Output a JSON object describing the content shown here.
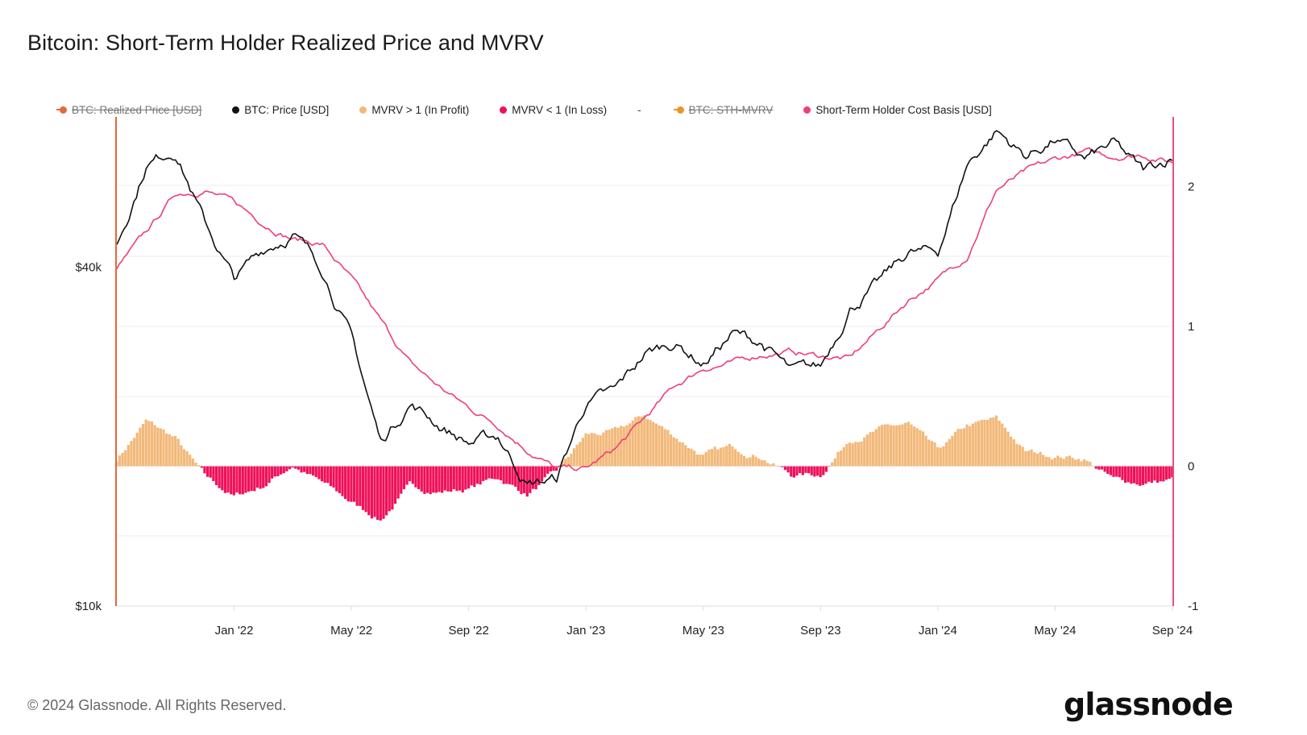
{
  "title": "Bitcoin: Short-Term Holder Realized Price and MVRV",
  "footer": "© 2024 Glassnode. All Rights Reserved.",
  "brand": "glassnode",
  "colors": {
    "price": "#111111",
    "sth_cost_basis": "#e8507c",
    "mvrv_profit": "#f2b97a",
    "mvrv_loss": "#f0105a",
    "realized_price": "#e0693c",
    "sth_mvrv": "#e8962a",
    "grid": "#eeeeee"
  },
  "legend": [
    {
      "label": "BTC: Realized Price [USD]",
      "color": "#e0693c",
      "disabled": true
    },
    {
      "label": "BTC: Price [USD]",
      "color": "#111111",
      "disabled": false
    },
    {
      "label": "MVRV > 1 (In Profit)",
      "color": "#f2b97a",
      "disabled": false
    },
    {
      "label": "MVRV < 1 (In Loss)",
      "color": "#f0105a",
      "disabled": false
    },
    {
      "label": "-",
      "color": null,
      "disabled": false,
      "separator": true
    },
    {
      "label": "BTC: STH-MVRV",
      "color": "#e8962a",
      "disabled": true
    },
    {
      "label": "Short-Term Holder Cost Basis [USD]",
      "color": "#ef3f74",
      "disabled": false
    }
  ],
  "chart_data": {
    "type": "line",
    "title": "Bitcoin: Short-Term Holder Realized Price and MVRV",
    "x_ticks": [
      "Jan '22",
      "May '22",
      "Sep '22",
      "Jan '23",
      "May '23",
      "Sep '23",
      "Jan '24",
      "May '24",
      "Sep '24"
    ],
    "x_range": [
      "Sep 2021",
      "Sep 2024"
    ],
    "y_left": {
      "scale": "log",
      "ticks": [
        "$40k",
        "$10k"
      ],
      "range_usd": [
        10000,
        74000
      ]
    },
    "y_right": {
      "ticks": [
        "2",
        "1",
        "0",
        "-1"
      ],
      "range": [
        -1,
        2.5
      ]
    },
    "series": [
      {
        "name": "BTC: Price [USD]",
        "axis": "left",
        "points": [
          [
            "2021-09",
            44000
          ],
          [
            "2021-10",
            61000
          ],
          [
            "2021-11",
            65000
          ],
          [
            "2021-12",
            48000
          ],
          [
            "2022-01",
            38000
          ],
          [
            "2022-02",
            43000
          ],
          [
            "2022-03",
            46000
          ],
          [
            "2022-04",
            40000
          ],
          [
            "2022-05",
            30000
          ],
          [
            "2022-06",
            19500
          ],
          [
            "2022-07",
            23000
          ],
          [
            "2022-08",
            21000
          ],
          [
            "2022-09",
            19500
          ],
          [
            "2022-10",
            20000
          ],
          [
            "2022-11",
            16500
          ],
          [
            "2022-12",
            16800
          ],
          [
            "2023-01",
            23000
          ],
          [
            "2023-02",
            24000
          ],
          [
            "2023-03",
            28000
          ],
          [
            "2023-04",
            29500
          ],
          [
            "2023-05",
            27000
          ],
          [
            "2023-06",
            30500
          ],
          [
            "2023-07",
            29300
          ],
          [
            "2023-08",
            26000
          ],
          [
            "2023-09",
            26500
          ],
          [
            "2023-10",
            34000
          ],
          [
            "2023-11",
            37500
          ],
          [
            "2023-12",
            42500
          ],
          [
            "2024-01",
            42500
          ],
          [
            "2024-02",
            61000
          ],
          [
            "2024-03",
            70000
          ],
          [
            "2024-04",
            63000
          ],
          [
            "2024-05",
            67500
          ],
          [
            "2024-06",
            62000
          ],
          [
            "2024-07",
            66000
          ],
          [
            "2024-08",
            59000
          ],
          [
            "2024-09",
            63000
          ]
        ]
      },
      {
        "name": "Short-Term Holder Cost Basis [USD]",
        "axis": "left",
        "points": [
          [
            "2021-09",
            40000
          ],
          [
            "2021-10",
            46000
          ],
          [
            "2021-11",
            54000
          ],
          [
            "2021-12",
            55000
          ],
          [
            "2022-01",
            52000
          ],
          [
            "2022-02",
            48000
          ],
          [
            "2022-03",
            45000
          ],
          [
            "2022-04",
            44000
          ],
          [
            "2022-05",
            38000
          ],
          [
            "2022-06",
            32000
          ],
          [
            "2022-07",
            27000
          ],
          [
            "2022-08",
            24500
          ],
          [
            "2022-09",
            22500
          ],
          [
            "2022-10",
            21000
          ],
          [
            "2022-11",
            19000
          ],
          [
            "2022-12",
            17500
          ],
          [
            "2023-01",
            17500
          ],
          [
            "2023-02",
            19000
          ],
          [
            "2023-03",
            21500
          ],
          [
            "2023-04",
            24500
          ],
          [
            "2023-05",
            26500
          ],
          [
            "2023-06",
            27000
          ],
          [
            "2023-07",
            28000
          ],
          [
            "2023-08",
            28300
          ],
          [
            "2023-09",
            27800
          ],
          [
            "2023-10",
            27500
          ],
          [
            "2023-11",
            31000
          ],
          [
            "2023-12",
            35000
          ],
          [
            "2024-01",
            38000
          ],
          [
            "2024-02",
            42000
          ],
          [
            "2024-03",
            55000
          ],
          [
            "2024-04",
            59000
          ],
          [
            "2024-05",
            62000
          ],
          [
            "2024-06",
            64000
          ],
          [
            "2024-07",
            63000
          ],
          [
            "2024-08",
            63500
          ],
          [
            "2024-09",
            61500
          ]
        ]
      },
      {
        "name": "BTC: STH-MVRV",
        "axis": "right",
        "render": "bars",
        "points": [
          [
            "2021-09",
            0.05
          ],
          [
            "2021-10",
            0.32
          ],
          [
            "2021-11",
            0.2
          ],
          [
            "2021-12",
            -0.08
          ],
          [
            "2022-01",
            -0.22
          ],
          [
            "2022-02",
            -0.14
          ],
          [
            "2022-03",
            0.01
          ],
          [
            "2022-04",
            -0.12
          ],
          [
            "2022-05",
            -0.26
          ],
          [
            "2022-06",
            -0.38
          ],
          [
            "2022-07",
            -0.15
          ],
          [
            "2022-08",
            -0.18
          ],
          [
            "2022-09",
            -0.16
          ],
          [
            "2022-10",
            -0.08
          ],
          [
            "2022-11",
            -0.2
          ],
          [
            "2022-12",
            -0.05
          ],
          [
            "2023-01",
            0.22
          ],
          [
            "2023-02",
            0.24
          ],
          [
            "2023-03",
            0.36
          ],
          [
            "2023-04",
            0.22
          ],
          [
            "2023-05",
            0.08
          ],
          [
            "2023-06",
            0.13
          ],
          [
            "2023-07",
            0.08
          ],
          [
            "2023-08",
            -0.06
          ],
          [
            "2023-09",
            -0.06
          ],
          [
            "2023-10",
            0.2
          ],
          [
            "2023-11",
            0.26
          ],
          [
            "2023-12",
            0.3
          ],
          [
            "2024-01",
            0.1
          ],
          [
            "2024-02",
            0.28
          ],
          [
            "2024-03",
            0.33
          ],
          [
            "2024-04",
            0.1
          ],
          [
            "2024-05",
            0.08
          ],
          [
            "2024-06",
            0.06
          ],
          [
            "2024-07",
            -0.1
          ],
          [
            "2024-08",
            -0.12
          ],
          [
            "2024-09",
            -0.1
          ]
        ]
      }
    ]
  }
}
